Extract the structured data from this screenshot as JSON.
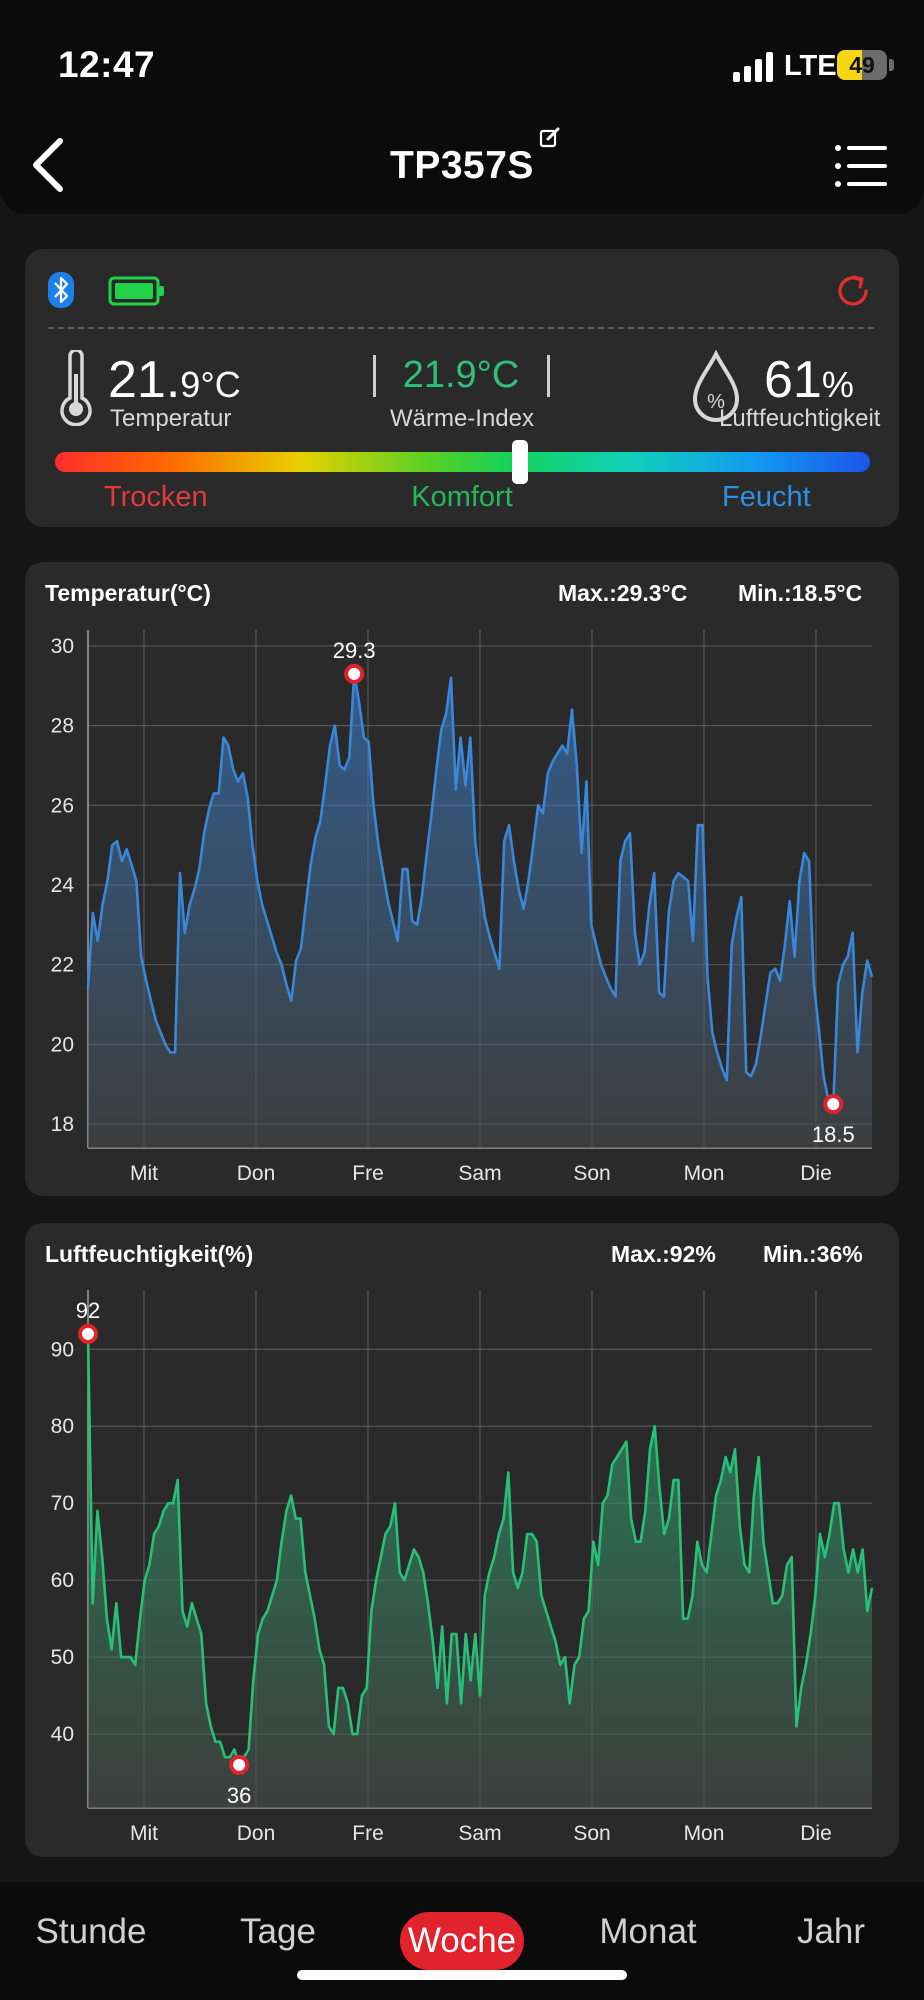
{
  "status": {
    "time": "12:47",
    "network": "LTE",
    "battery": "49"
  },
  "header": {
    "title": "TP357S"
  },
  "summary": {
    "temp_int": "21.",
    "temp_dec": "9",
    "temp_unit": "°C",
    "temp_label": "Temperatur",
    "heat_index": "21.9°C",
    "heat_index_label": "Wärme-Index",
    "humidity": "61",
    "humidity_unit": "%",
    "humidity_label": "Luftfeuchtigkeit",
    "scale": {
      "dry": "Trocken",
      "comfort": "Komfort",
      "wet": "Feucht",
      "level": 0.57
    }
  },
  "colors": {
    "temp_line": "#3a86d8",
    "humidity_line": "#27c07a",
    "dry": "#e03a3a",
    "comfort": "#25b85a",
    "wet": "#2d8fe0",
    "accent": "#e0232c",
    "heat_index": "#2fc07c"
  },
  "chart_data": [
    {
      "type": "area",
      "title": "Temperatur(°C)",
      "max_label": "Max.:29.3°C",
      "min_label": "Min.:18.5°C",
      "max_marker": "29.3",
      "min_marker": "18.5",
      "ylim": [
        17.4,
        30.4
      ],
      "yticks": [
        18,
        20,
        22,
        24,
        26,
        28,
        30
      ],
      "x_start_label": "Mit",
      "xlabels": [
        "Mit",
        "Don",
        "Fre",
        "Sam",
        "Son",
        "Mon",
        "Die"
      ],
      "series": [
        {
          "values": [
            21.4,
            23.3,
            22.6,
            23.5,
            24.1,
            25.0,
            25.1,
            24.6,
            24.9,
            24.5,
            24.1,
            22.2,
            21.6,
            21.1,
            20.6,
            20.3,
            20.0,
            19.8,
            19.8,
            24.3,
            22.8,
            23.5,
            23.9,
            24.4,
            25.3,
            25.9,
            26.3,
            26.3,
            27.7,
            27.5,
            26.9,
            26.6,
            26.8,
            26.2,
            25.0,
            24.1,
            23.5,
            23.1,
            22.7,
            22.3,
            22.0,
            21.5,
            21.1,
            22.1,
            22.4,
            23.5,
            24.5,
            25.2,
            25.6,
            26.5,
            27.5,
            28.0,
            27.0,
            26.9,
            27.2,
            29.3,
            28.6,
            27.7,
            27.6,
            26.0,
            25.0,
            24.3,
            23.6,
            23.1,
            22.6,
            24.4,
            24.4,
            23.1,
            23.0,
            23.7,
            24.8,
            25.8,
            26.9,
            27.9,
            28.3,
            29.2,
            26.4,
            27.7,
            26.5,
            27.7,
            25.1,
            24.1,
            23.2,
            22.7,
            22.3,
            21.9,
            25.1,
            25.5,
            24.6,
            23.9,
            23.4,
            24.1,
            25.0,
            26.0,
            25.8,
            26.8,
            27.1,
            27.3,
            27.5,
            27.3,
            28.4,
            27.0,
            24.8,
            26.6,
            23.0,
            22.5,
            22.0,
            21.7,
            21.4,
            21.2,
            24.6,
            25.1,
            25.3,
            22.8,
            22.0,
            22.3,
            23.5,
            24.3,
            21.3,
            21.2,
            23.3,
            24.1,
            24.3,
            24.2,
            24.1,
            22.6,
            25.5,
            25.5,
            21.7,
            20.3,
            19.8,
            19.4,
            19.1,
            22.5,
            23.2,
            23.7,
            19.3,
            19.2,
            19.5,
            20.2,
            21.0,
            21.8,
            21.9,
            21.6,
            22.5,
            23.6,
            22.2,
            24.1,
            24.8,
            24.6,
            21.5,
            20.4,
            19.2,
            18.6,
            18.5,
            21.5,
            22.0,
            22.2,
            22.8,
            19.8,
            21.3,
            22.1,
            21.7
          ]
        }
      ]
    },
    {
      "type": "area",
      "title": "Luftfeuchtigkeit(%)",
      "max_label": "Max.:92%",
      "min_label": "Min.:36%",
      "max_marker": "92",
      "min_marker": "36",
      "ylim": [
        30.4,
        97.7
      ],
      "yticks": [
        40,
        50,
        60,
        70,
        80,
        90
      ],
      "x_start_label": "Mit",
      "xlabels": [
        "Mit",
        "Don",
        "Fre",
        "Sam",
        "Son",
        "Mon",
        "Die"
      ],
      "series": [
        {
          "values": [
            92,
            57,
            69,
            63,
            55,
            51,
            57,
            50,
            50,
            50,
            49,
            55,
            60,
            62,
            66,
            67,
            69,
            70,
            70,
            73,
            56,
            54,
            57,
            55,
            53,
            44,
            41,
            39,
            39,
            37,
            37,
            38,
            36,
            37,
            38,
            47,
            53,
            55,
            56,
            58,
            60,
            65,
            69,
            71,
            68,
            68,
            61,
            58,
            55,
            51,
            49,
            41,
            40,
            46,
            46,
            44,
            40,
            40,
            45,
            46,
            56,
            60,
            63,
            66,
            67,
            70,
            61,
            60,
            62,
            64,
            63,
            61,
            57,
            52,
            46,
            54,
            44,
            53,
            53,
            44,
            53,
            47,
            53,
            45,
            58,
            61,
            63,
            66,
            68,
            74,
            61,
            59,
            61,
            66,
            66,
            65,
            58,
            56,
            54,
            52,
            49,
            50,
            44,
            49,
            50,
            55,
            56,
            65,
            62,
            70,
            71,
            75,
            76,
            77,
            78,
            68,
            65,
            65,
            69,
            77,
            80,
            72,
            66,
            68,
            73,
            73,
            55,
            55,
            58,
            65,
            62,
            61,
            66,
            71,
            73,
            76,
            74,
            77,
            67,
            62,
            61,
            71,
            76,
            65,
            61,
            57,
            57,
            58,
            62,
            63,
            41,
            46,
            49,
            53,
            58,
            66,
            63,
            66,
            70,
            70,
            64,
            61,
            64,
            61,
            64,
            56,
            59
          ]
        }
      ]
    }
  ],
  "tabs": [
    "Stunde",
    "Tage",
    "Woche",
    "Monat",
    "Jahr"
  ]
}
